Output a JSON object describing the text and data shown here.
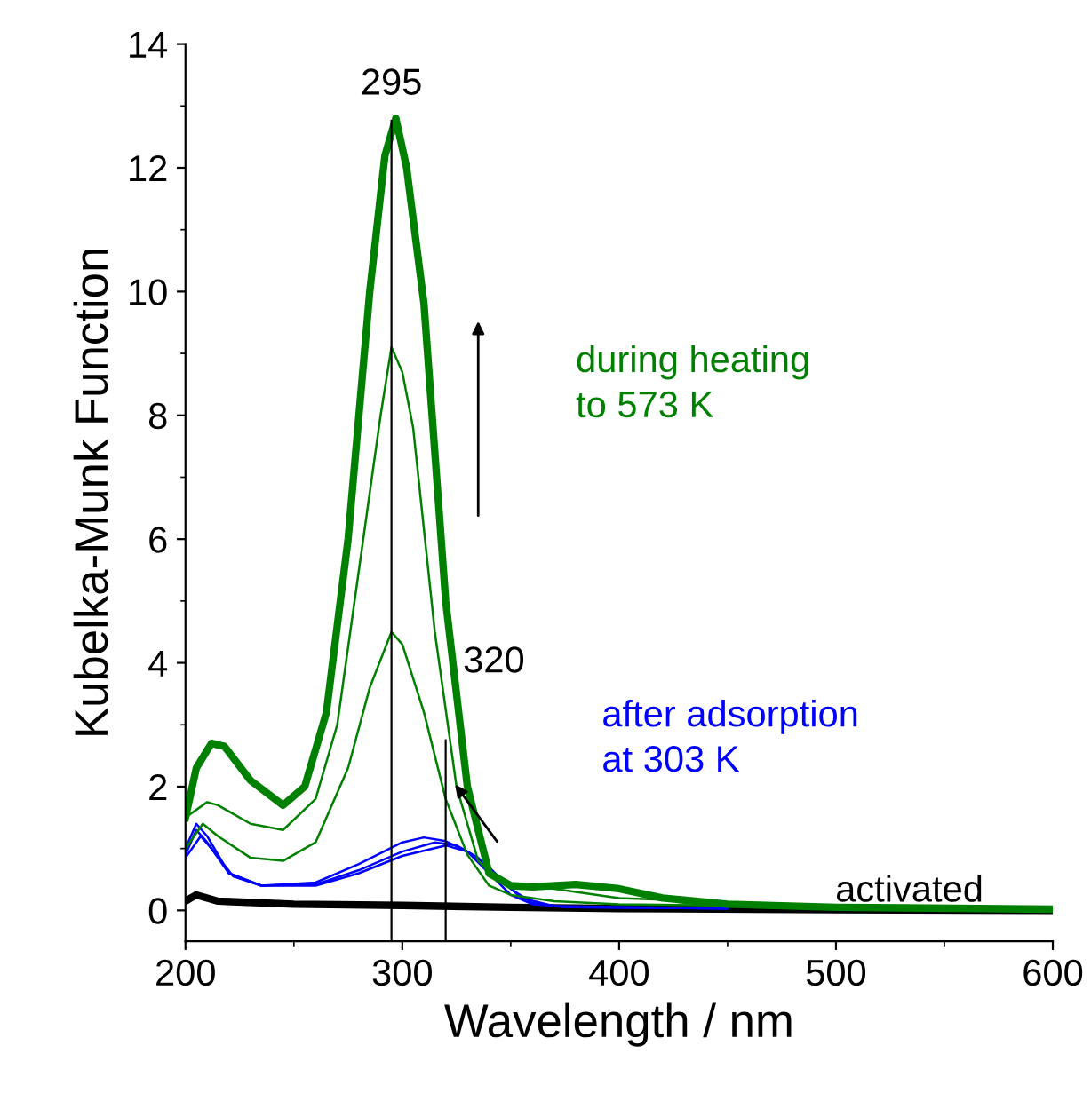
{
  "chart_data": {
    "type": "line",
    "xlabel": "Wavelength / nm",
    "ylabel": "Kubelka-Munk Function",
    "xlim": [
      200,
      600
    ],
    "xticks": [
      200,
      300,
      400,
      500,
      600
    ],
    "ylim": [
      -0.5,
      14
    ],
    "yticks": [
      0,
      2,
      4,
      6,
      8,
      10,
      12,
      14
    ],
    "grid": false,
    "marker": "none",
    "line_style": "solid",
    "series": [
      {
        "color": "#000000",
        "x": [
          200,
          205,
          215,
          250,
          300,
          350,
          400,
          500,
          600
        ],
        "values": [
          0.15,
          0.25,
          0.15,
          0.1,
          0.08,
          0.05,
          0.03,
          0.01,
          0.0
        ]
      },
      {
        "color": "#0000ff",
        "x": [
          200,
          205,
          210,
          220,
          235,
          260,
          280,
          300,
          310,
          320,
          330,
          340,
          350,
          360,
          380,
          450
        ],
        "values": [
          0.9,
          1.3,
          1.1,
          0.6,
          0.4,
          0.45,
          0.75,
          1.1,
          1.18,
          1.12,
          0.95,
          0.6,
          0.25,
          0.1,
          0.05,
          0.03
        ]
      },
      {
        "color": "#0000ff",
        "x": [
          200,
          205,
          210,
          220,
          235,
          260,
          280,
          300,
          315,
          325,
          335,
          345,
          355,
          370,
          450
        ],
        "values": [
          1.0,
          1.4,
          1.2,
          0.6,
          0.4,
          0.42,
          0.65,
          0.95,
          1.1,
          1.05,
          0.85,
          0.5,
          0.2,
          0.07,
          0.03
        ]
      },
      {
        "color": "#0000ff",
        "x": [
          200,
          207,
          212,
          222,
          235,
          260,
          280,
          300,
          320,
          330,
          340,
          350,
          360,
          375,
          450
        ],
        "values": [
          0.85,
          1.2,
          1.0,
          0.55,
          0.4,
          0.4,
          0.6,
          0.88,
          1.05,
          0.95,
          0.7,
          0.35,
          0.12,
          0.05,
          0.03
        ]
      },
      {
        "color": "#008000",
        "x": [
          200,
          208,
          215,
          230,
          245,
          260,
          275,
          285,
          295,
          300,
          310,
          320,
          330,
          340,
          350,
          370,
          400,
          500,
          600
        ],
        "values": [
          1.0,
          1.4,
          1.2,
          0.85,
          0.8,
          1.1,
          2.3,
          3.6,
          4.5,
          4.3,
          3.2,
          1.8,
          0.9,
          0.4,
          0.25,
          0.15,
          0.1,
          0.05,
          0.02
        ]
      },
      {
        "color": "#008000",
        "x": [
          200,
          210,
          215,
          230,
          245,
          260,
          270,
          280,
          290,
          295,
          300,
          305,
          315,
          325,
          335,
          345,
          370,
          400,
          500,
          600
        ],
        "values": [
          1.5,
          1.75,
          1.7,
          1.4,
          1.3,
          1.8,
          3.0,
          5.5,
          8.0,
          9.1,
          8.7,
          7.8,
          4.5,
          2.0,
          0.8,
          0.45,
          0.35,
          0.2,
          0.06,
          0.02
        ]
      },
      {
        "color": "#008000",
        "x": [
          200,
          205,
          212,
          218,
          230,
          245,
          255,
          265,
          275,
          285,
          292,
          297,
          302,
          310,
          320,
          330,
          340,
          350,
          360,
          380,
          400,
          420,
          450,
          500,
          600
        ],
        "values": [
          1.5,
          2.3,
          2.7,
          2.65,
          2.1,
          1.7,
          2.0,
          3.2,
          6.0,
          10.0,
          12.2,
          12.8,
          12.0,
          9.8,
          5.0,
          2.0,
          0.6,
          0.4,
          0.38,
          0.42,
          0.35,
          0.2,
          0.1,
          0.05,
          0.02
        ]
      }
    ],
    "ref_lines": [
      {
        "axis": "x",
        "value": 295,
        "label": "295",
        "color": "#000000"
      },
      {
        "axis": "x",
        "value": 320,
        "label": "320",
        "color": "#000000"
      }
    ],
    "annotations": [
      "during heating\nto 573 K",
      "after adsorption\nat 303 K",
      "activated"
    ]
  }
}
